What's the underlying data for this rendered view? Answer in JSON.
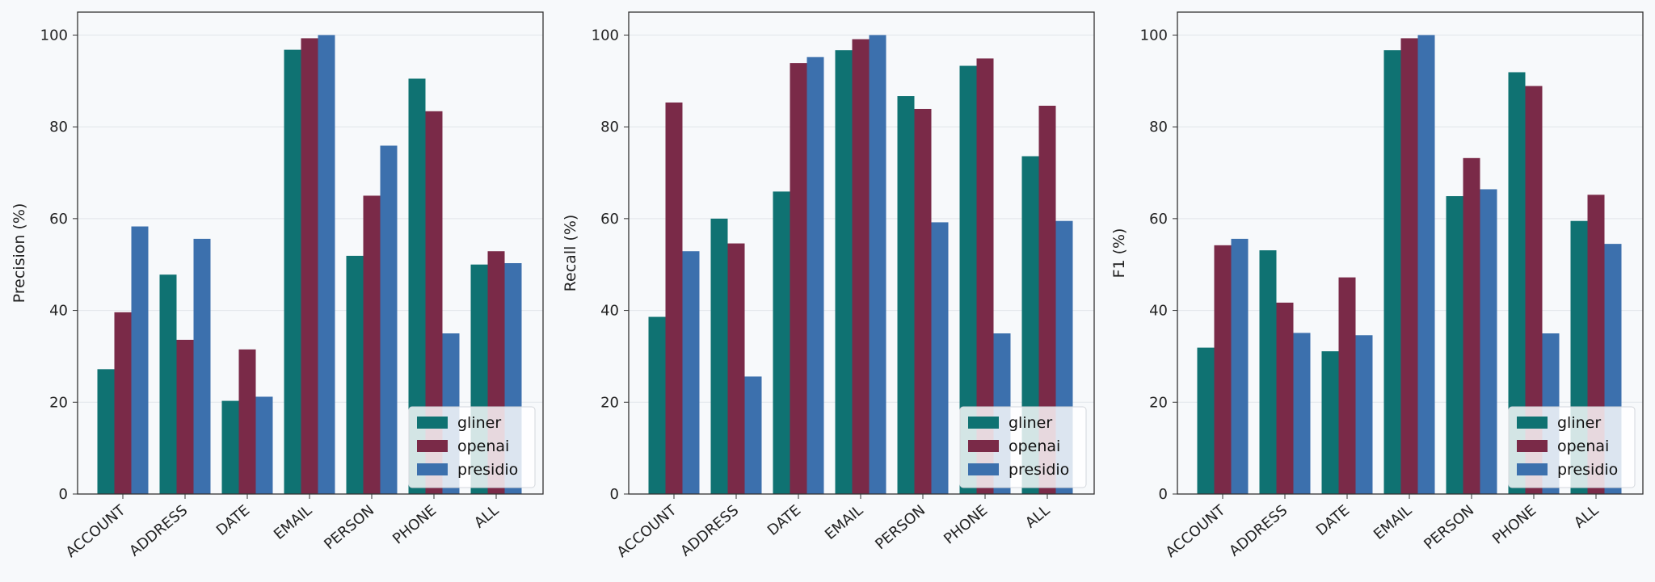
{
  "colors": {
    "background": "#f7f9fb",
    "gliner": "#0f7272",
    "openai": "#7a2a48",
    "presidio": "#3c70ad",
    "grid": "#e1e5ea",
    "frame": "#333333"
  },
  "chart_data": [
    {
      "type": "bar",
      "xlabel": "",
      "ylabel": "Precision (%)",
      "ylim": [
        0,
        105
      ],
      "yticks": [
        "0",
        "20",
        "40",
        "60",
        "80",
        "100"
      ],
      "grid": "horizontal",
      "legend_position": "bottom-right",
      "categories": [
        "ACCOUNT",
        "ADDRESS",
        "DATE",
        "EMAIL",
        "PERSON",
        "PHONE",
        "ALL"
      ],
      "series": [
        {
          "name": "gliner",
          "values": [
            27.2,
            47.8,
            20.3,
            96.8,
            51.9,
            90.5,
            50.0
          ]
        },
        {
          "name": "openai",
          "values": [
            39.6,
            33.6,
            31.5,
            99.3,
            65.0,
            83.4,
            52.9
          ]
        },
        {
          "name": "presidio",
          "values": [
            58.3,
            55.6,
            21.2,
            100.0,
            75.9,
            35.0,
            50.3
          ]
        }
      ]
    },
    {
      "type": "bar",
      "xlabel": "",
      "ylabel": "Recall (%)",
      "ylim": [
        0,
        105
      ],
      "yticks": [
        "0",
        "20",
        "40",
        "60",
        "80",
        "100"
      ],
      "grid": "horizontal",
      "legend_position": "bottom-right",
      "categories": [
        "ACCOUNT",
        "ADDRESS",
        "DATE",
        "EMAIL",
        "PERSON",
        "PHONE",
        "ALL"
      ],
      "series": [
        {
          "name": "gliner",
          "values": [
            38.6,
            60.0,
            65.9,
            96.7,
            86.7,
            93.3,
            73.6
          ]
        },
        {
          "name": "openai",
          "values": [
            85.3,
            54.6,
            93.9,
            99.1,
            83.9,
            94.9,
            84.6
          ]
        },
        {
          "name": "presidio",
          "values": [
            52.9,
            25.6,
            95.2,
            100.0,
            59.2,
            35.0,
            59.5
          ]
        }
      ]
    },
    {
      "type": "bar",
      "xlabel": "",
      "ylabel": "F1 (%)",
      "ylim": [
        0,
        105
      ],
      "yticks": [
        "0",
        "20",
        "40",
        "60",
        "80",
        "100"
      ],
      "grid": "horizontal",
      "legend_position": "bottom-right",
      "categories": [
        "ACCOUNT",
        "ADDRESS",
        "DATE",
        "EMAIL",
        "PERSON",
        "PHONE",
        "ALL"
      ],
      "series": [
        {
          "name": "gliner",
          "values": [
            31.9,
            53.1,
            31.1,
            96.7,
            64.9,
            91.9,
            59.5
          ]
        },
        {
          "name": "openai",
          "values": [
            54.2,
            41.7,
            47.2,
            99.3,
            73.2,
            88.9,
            65.2
          ]
        },
        {
          "name": "presidio",
          "values": [
            55.6,
            35.1,
            34.6,
            100.0,
            66.4,
            35.0,
            54.5
          ]
        }
      ]
    }
  ]
}
